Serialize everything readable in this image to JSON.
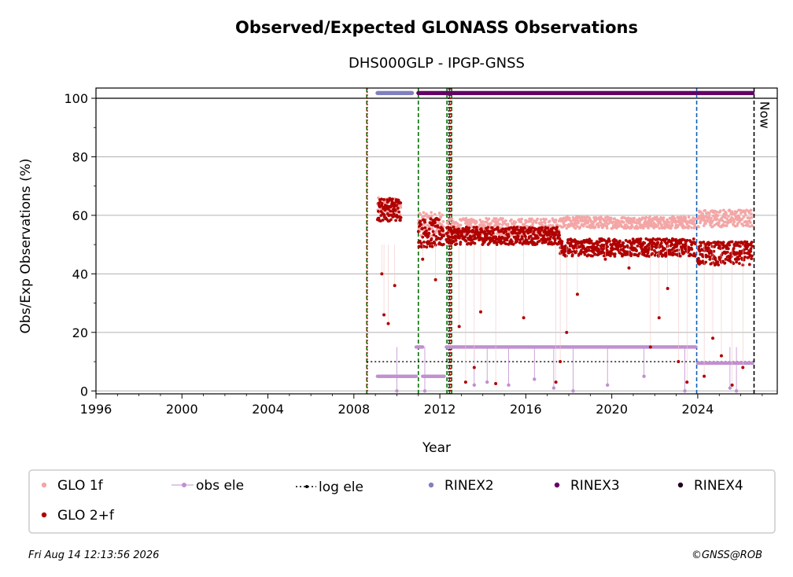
{
  "chart_data": {
    "type": "scatter",
    "title": "Observed/Expected GLONASS Observations",
    "subtitle": "DHS000GLP - IPGP-GNSS",
    "xlabel": "Year",
    "ylabel": "Obs/Exp Observations (%)",
    "xlim": [
      1996,
      2027.7
    ],
    "ylim": [
      -1,
      103.5
    ],
    "x_ticks": [
      "1996",
      "2000",
      "2004",
      "2008",
      "2012",
      "2016",
      "2020",
      "2024"
    ],
    "y_ticks": [
      "0",
      "20",
      "40",
      "60",
      "80",
      "100"
    ],
    "grid": "horizontal",
    "now_label": "Now",
    "now_year": 2026.62,
    "reference_line_y": 100,
    "legend": {
      "placement": "bottom",
      "entries": [
        {
          "label": "GLO 1f",
          "color": "#f4a6a6",
          "marker": "dot"
        },
        {
          "label": "obs ele",
          "color": "#c090d0",
          "marker": "dot-line"
        },
        {
          "label": "log ele",
          "color": "#000000",
          "marker": "dot-dotted"
        },
        {
          "label": "RINEX2",
          "color": "#8080c0",
          "marker": "dot"
        },
        {
          "label": "RINEX3",
          "color": "#660066",
          "marker": "dot"
        },
        {
          "label": "RINEX4",
          "color": "#200020",
          "marker": "dot"
        },
        {
          "label": "GLO 2+f",
          "color": "#b00000",
          "marker": "dot"
        }
      ]
    },
    "vertical_lines": [
      {
        "x": 2008.6,
        "color": "#007000",
        "style": "dashed"
      },
      {
        "x": 2008.62,
        "color": "#cc0000",
        "style": "dotted"
      },
      {
        "x": 2011.0,
        "color": "#007000",
        "style": "dashed"
      },
      {
        "x": 2012.33,
        "color": "#007000",
        "style": "dashed"
      },
      {
        "x": 2012.42,
        "color": "#000000",
        "style": "dotted"
      },
      {
        "x": 2012.45,
        "color": "#007000",
        "style": "dashed"
      },
      {
        "x": 2012.5,
        "color": "#cc0000",
        "style": "dotted"
      },
      {
        "x": 2012.55,
        "color": "#007000",
        "style": "dashed"
      },
      {
        "x": 2023.95,
        "color": "#1060b0",
        "style": "dashed"
      },
      {
        "x": 2026.62,
        "color": "#000000",
        "style": "dashed"
      }
    ],
    "series": [
      {
        "name": "GLO 1f",
        "color": "#f4a6a6",
        "segments": [
          {
            "x0": 2009.1,
            "x1": 2010.2,
            "mean": 63,
            "spread": 3
          },
          {
            "x0": 2011.0,
            "x1": 2012.2,
            "mean": 57,
            "spread": 4
          },
          {
            "x0": 2012.3,
            "x1": 2017.6,
            "mean": 56,
            "spread": 3
          },
          {
            "x0": 2017.6,
            "x1": 2023.9,
            "mean": 57.5,
            "spread": 2
          },
          {
            "x0": 2024.0,
            "x1": 2026.55,
            "mean": 59,
            "spread": 3
          }
        ]
      },
      {
        "name": "GLO 2+f",
        "color": "#b00000",
        "segments": [
          {
            "x0": 2009.1,
            "x1": 2010.2,
            "mean": 62,
            "spread": 4
          },
          {
            "x0": 2011.0,
            "x1": 2012.2,
            "mean": 54,
            "spread": 5
          },
          {
            "x0": 2012.3,
            "x1": 2017.6,
            "mean": 53,
            "spread": 3
          },
          {
            "x0": 2017.6,
            "x1": 2023.9,
            "mean": 49,
            "spread": 3
          },
          {
            "x0": 2024.0,
            "x1": 2026.55,
            "mean": 47,
            "spread": 4
          }
        ],
        "outliers": [
          [
            2009.4,
            26
          ],
          [
            2009.6,
            23
          ],
          [
            2009.9,
            36
          ],
          [
            2009.3,
            40
          ],
          [
            2011.2,
            45
          ],
          [
            2011.8,
            38
          ],
          [
            2012.9,
            22
          ],
          [
            2013.2,
            3
          ],
          [
            2013.6,
            8
          ],
          [
            2013.9,
            27
          ],
          [
            2014.6,
            2.5
          ],
          [
            2015.9,
            25
          ],
          [
            2017.4,
            3
          ],
          [
            2017.6,
            10
          ],
          [
            2017.9,
            20
          ],
          [
            2018.4,
            33
          ],
          [
            2019.7,
            45
          ],
          [
            2020.8,
            42
          ],
          [
            2021.8,
            15
          ],
          [
            2022.2,
            25
          ],
          [
            2022.6,
            35
          ],
          [
            2023.1,
            10
          ],
          [
            2023.5,
            3
          ],
          [
            2024.3,
            5
          ],
          [
            2024.7,
            18
          ],
          [
            2025.1,
            12
          ],
          [
            2025.6,
            2
          ],
          [
            2026.1,
            8
          ]
        ]
      },
      {
        "name": "obs ele",
        "color": "#c090d0",
        "segments": [
          {
            "x0": 2009.1,
            "x1": 2010.9,
            "y": 5
          },
          {
            "x0": 2010.9,
            "x1": 2011.2,
            "y": 15
          },
          {
            "x0": 2011.2,
            "x1": 2012.2,
            "y": 5
          },
          {
            "x0": 2012.3,
            "x1": 2023.9,
            "y": 15
          },
          {
            "x0": 2024.0,
            "x1": 2026.55,
            "y": 9.5
          }
        ],
        "dips": [
          [
            2010.0,
            0
          ],
          [
            2011.3,
            0
          ],
          [
            2013.6,
            2
          ],
          [
            2014.2,
            3
          ],
          [
            2015.2,
            2
          ],
          [
            2016.4,
            4
          ],
          [
            2017.3,
            1
          ],
          [
            2018.2,
            0
          ],
          [
            2019.8,
            2
          ],
          [
            2021.5,
            5
          ],
          [
            2023.4,
            0
          ],
          [
            2025.5,
            1
          ],
          [
            2025.8,
            0
          ]
        ]
      },
      {
        "name": "log ele",
        "color": "#000000",
        "segments": [
          {
            "x0": 2008.6,
            "x1": 2026.62,
            "y": 10
          }
        ]
      },
      {
        "name": "RINEX2",
        "color": "#8080c0",
        "segments": [
          {
            "x0": 2009.1,
            "x1": 2010.7,
            "y": 101.8
          }
        ]
      },
      {
        "name": "RINEX3",
        "color": "#660066",
        "segments": [
          {
            "x0": 2011.0,
            "x1": 2023.9,
            "y": 101.8
          },
          {
            "x0": 2024.0,
            "x1": 2026.55,
            "y": 101.8
          }
        ]
      }
    ]
  },
  "footer": {
    "timestamp": "Fri Aug 14 12:13:56 2026",
    "credit": "©GNSS@ROB"
  }
}
